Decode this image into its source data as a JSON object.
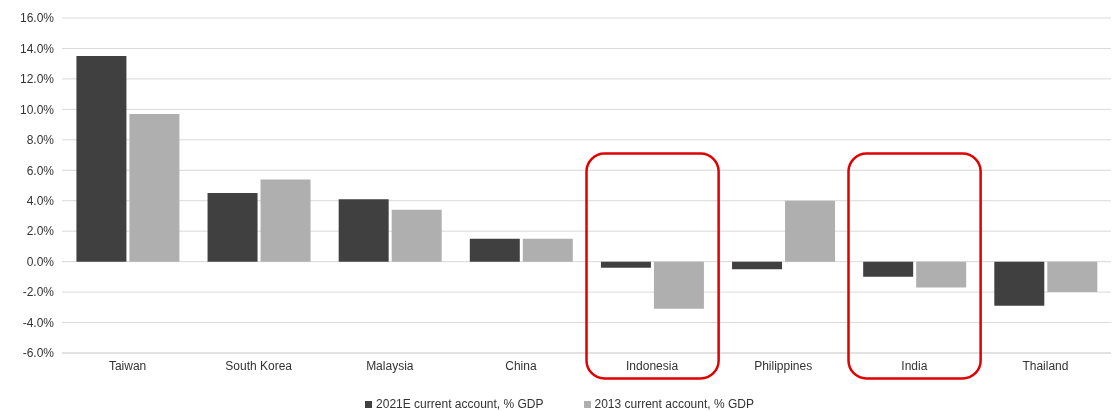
{
  "chart_data": {
    "type": "bar",
    "categories": [
      "Taiwan",
      "South Korea",
      "Malaysia",
      "China",
      "Indonesia",
      "Philippines",
      "India",
      "Thailand"
    ],
    "series": [
      {
        "name": "2021E current account, % GDP",
        "color": "#404040",
        "values": [
          13.5,
          4.5,
          4.1,
          1.5,
          -0.4,
          -0.5,
          -1.0,
          -2.9
        ]
      },
      {
        "name": "2013 current account, % GDP",
        "color": "#afafaf",
        "values": [
          9.7,
          5.4,
          3.4,
          1.5,
          -3.1,
          4.0,
          -1.7,
          -2.0
        ]
      }
    ],
    "ylim": [
      -6,
      16
    ],
    "yticks": [
      {
        "value": -6,
        "label": "-6.0%"
      },
      {
        "value": -4,
        "label": "-4.0%"
      },
      {
        "value": -2,
        "label": "-2.0%"
      },
      {
        "value": 0,
        "label": "0.0%"
      },
      {
        "value": 2,
        "label": "2.0%"
      },
      {
        "value": 4,
        "label": "4.0%"
      },
      {
        "value": 6,
        "label": "6.0%"
      },
      {
        "value": 8,
        "label": "8.0%"
      },
      {
        "value": 10,
        "label": "10.0%"
      },
      {
        "value": 12,
        "label": "12.0%"
      },
      {
        "value": 14,
        "label": "14.0%"
      },
      {
        "value": 16,
        "label": "16.0%"
      }
    ],
    "grid": "y",
    "legend": "bottom"
  }
}
